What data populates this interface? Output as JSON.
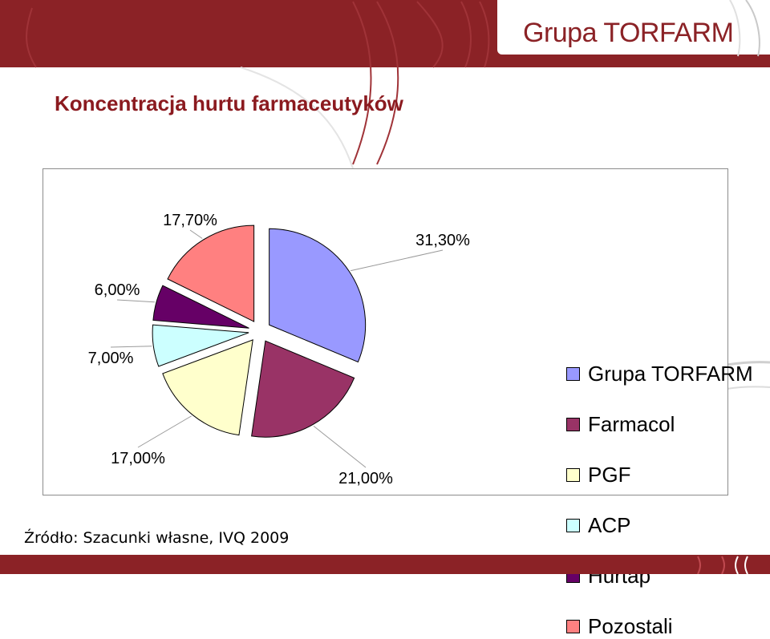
{
  "header": {
    "brand": "Grupa TORFARM"
  },
  "page": {
    "title": "Koncentracja hurtu farmaceutyków"
  },
  "footer": {
    "source": "Źródło: Szacunki własne, IVQ 2009"
  },
  "colors": {
    "brand": "#8b2226",
    "title": "#8b1a1f"
  },
  "chart_data": {
    "type": "pie",
    "title": "",
    "categories": [
      "Grupa TORFARM",
      "Farmacol",
      "PGF",
      "ACP",
      "Hurtap",
      "Pozostali"
    ],
    "values": [
      31.3,
      21.0,
      17.0,
      7.0,
      6.0,
      17.7
    ],
    "data_labels": [
      "31,30%",
      "21,00%",
      "17,00%",
      "7,00%",
      "6,00%",
      "17,70%"
    ],
    "colors": [
      "#9999ff",
      "#993366",
      "#ffffcc",
      "#ccffff",
      "#660066",
      "#ff8080"
    ],
    "exploded": true,
    "legend": "right"
  }
}
